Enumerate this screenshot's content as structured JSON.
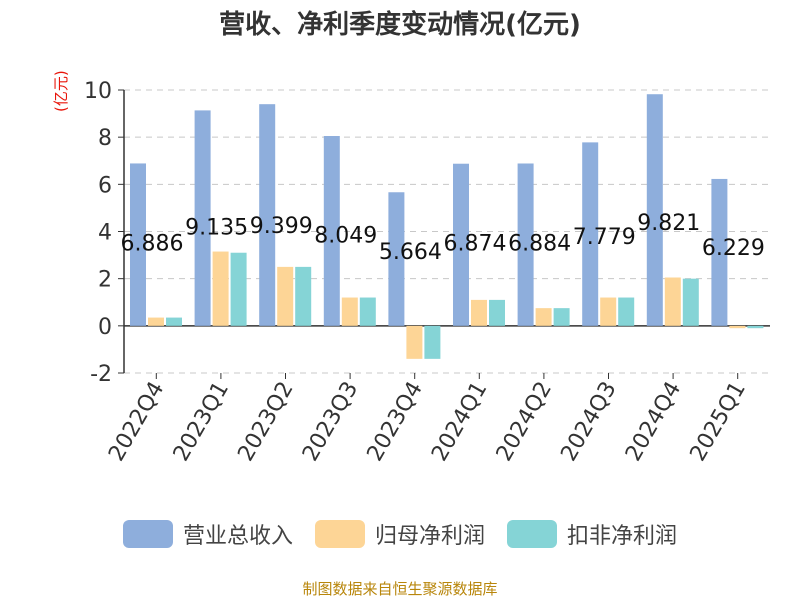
{
  "chart_data": {
    "type": "bar",
    "title": "营收、净利季度变动情况(亿元)",
    "ylabel": "(亿元)",
    "ylim": [
      -2,
      10
    ],
    "yticks": [
      -2,
      0,
      2,
      4,
      6,
      8,
      10
    ],
    "grid": true,
    "legend_position": "bottom",
    "categories": [
      "2022Q4",
      "2023Q1",
      "2023Q2",
      "2023Q3",
      "2023Q4",
      "2024Q1",
      "2024Q2",
      "2024Q3",
      "2024Q4",
      "2025Q1"
    ],
    "series": [
      {
        "name": "营业总收入",
        "color": "#8eaedc",
        "values": [
          6.886,
          9.135,
          9.399,
          8.049,
          5.664,
          6.874,
          6.884,
          7.779,
          9.821,
          6.229
        ],
        "labels": [
          "6.886",
          "9.135",
          "9.399",
          "8.049",
          "5.664",
          "6.874",
          "6.884",
          "7.779",
          "9.821",
          "6.229"
        ]
      },
      {
        "name": "归母净利润",
        "color": "#fdd596",
        "values": [
          0.35,
          3.15,
          2.5,
          1.2,
          -1.4,
          1.1,
          0.75,
          1.2,
          2.05,
          -0.1
        ]
      },
      {
        "name": "扣非净利润",
        "color": "#85d4d6",
        "values": [
          0.35,
          3.1,
          2.5,
          1.2,
          -1.4,
          1.1,
          0.75,
          1.2,
          2.0,
          -0.1
        ]
      }
    ]
  },
  "footer": {
    "source": "制图数据来自恒生聚源数据库"
  }
}
